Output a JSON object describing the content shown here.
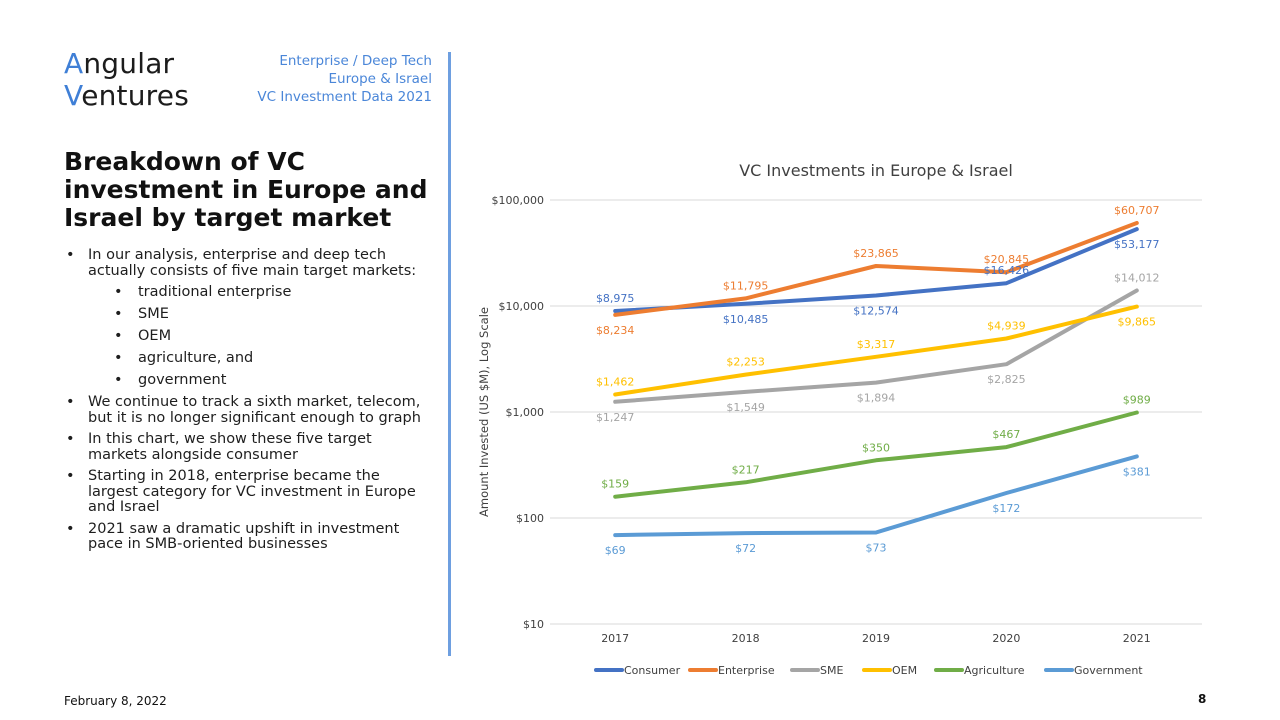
{
  "logo": {
    "line1_accent": "A",
    "line1_rest": "ngular",
    "line2_accent": "V",
    "line2_rest": "entures"
  },
  "tagline": [
    "Enterprise / Deep Tech",
    "Europe & Israel",
    "VC Investment Data 2021"
  ],
  "title": "Breakdown of VC investment in Europe and Israel by target market",
  "bullets": {
    "intro": "In our analysis, enterprise and deep tech actually consists of five main target markets:",
    "markets": [
      "traditional enterprise",
      "SME",
      "OEM",
      "agriculture, and",
      "government"
    ],
    "points": [
      "We continue to track a sixth market, telecom, but it is no longer significant enough to graph",
      "In this chart, we show these five target markets alongside consumer",
      "Starting in 2018, enterprise became the largest category for VC investment in Europe and Israel",
      "2021 saw a dramatic upshift in investment pace in SMB-oriented businesses"
    ]
  },
  "footer": {
    "date": "February 8, 2022",
    "page": "8"
  },
  "colors": {
    "accent": "#3f7fd6",
    "divider": "#6e9fe0",
    "grid": "#d9d9d9"
  },
  "chart_data": {
    "type": "line",
    "title": "VC Investments in Europe & Israel",
    "ylabel": "Amount Invested (US $M), Log Scale",
    "xlabel": "",
    "scale": "log",
    "ylim": [
      10,
      100000
    ],
    "y_ticks": [
      10,
      100,
      1000,
      10000,
      100000
    ],
    "y_tick_labels": [
      "$10",
      "$100",
      "$1,000",
      "$10,000",
      "$100,000"
    ],
    "categories": [
      "2017",
      "2018",
      "2019",
      "2020",
      "2021"
    ],
    "legend_position": "bottom",
    "series": [
      {
        "name": "Consumer",
        "color": "#4472c4",
        "values": [
          8975,
          10485,
          12574,
          16426,
          53177
        ],
        "labels": [
          "$8,975",
          "$10,485",
          "$12,574",
          "$16,426",
          "$53,177"
        ],
        "label_pos": [
          "above",
          "below",
          "below",
          "above",
          "below"
        ]
      },
      {
        "name": "Enterprise",
        "color": "#ed7d31",
        "values": [
          8234,
          11795,
          23865,
          20845,
          60707
        ],
        "labels": [
          "$8,234",
          "$11,795",
          "$23,865",
          "$20,845",
          "$60,707"
        ],
        "label_pos": [
          "below",
          "above",
          "above",
          "above",
          "above"
        ]
      },
      {
        "name": "SME",
        "color": "#a5a5a5",
        "values": [
          1247,
          1549,
          1894,
          2825,
          14012
        ],
        "labels": [
          "$1,247",
          "$1,549",
          "$1,894",
          "$2,825",
          "$14,012"
        ],
        "label_pos": [
          "below",
          "below",
          "below",
          "below",
          "above"
        ]
      },
      {
        "name": "OEM",
        "color": "#ffc000",
        "values": [
          1462,
          2253,
          3317,
          4939,
          9865
        ],
        "labels": [
          "$1,462",
          "$2,253",
          "$3,317",
          "$4,939",
          "$9,865"
        ],
        "label_pos": [
          "above",
          "above",
          "above",
          "above",
          "below"
        ]
      },
      {
        "name": "Agriculture",
        "color": "#70ad47",
        "values": [
          159,
          217,
          350,
          467,
          989
        ],
        "labels": [
          "$159",
          "$217",
          "$350",
          "$467",
          "$989"
        ],
        "label_pos": [
          "above",
          "above",
          "above",
          "above",
          "above"
        ]
      },
      {
        "name": "Government",
        "color": "#5b9bd5",
        "values": [
          69,
          72,
          73,
          172,
          381
        ],
        "labels": [
          "$69",
          "$72",
          "$73",
          "$172",
          "$381"
        ],
        "label_pos": [
          "below",
          "below",
          "below",
          "below",
          "below"
        ]
      }
    ]
  }
}
